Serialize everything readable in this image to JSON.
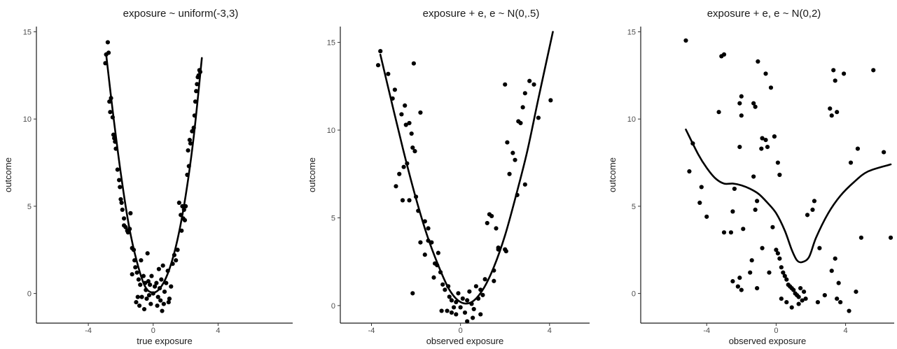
{
  "chart_data": [
    {
      "type": "scatter",
      "title": "exposure ~ uniform(-3,3)",
      "xlabel": "true exposure",
      "ylabel": "outcome",
      "xlim": [
        -7.2,
        8.6
      ],
      "ylim": [
        -1.7,
        15.3
      ],
      "xticks": [
        -4,
        0,
        4
      ],
      "yticks": [
        0,
        5,
        10,
        15
      ],
      "grid": false,
      "points": [
        [
          -2.9,
          13.7
        ],
        [
          -2.8,
          14.4
        ],
        [
          -2.75,
          13.8
        ],
        [
          -2.95,
          13.2
        ],
        [
          -2.7,
          11
        ],
        [
          -2.6,
          11.2
        ],
        [
          -2.65,
          10.4
        ],
        [
          -2.5,
          10.1
        ],
        [
          -2.45,
          9.1
        ],
        [
          -2.4,
          8.9
        ],
        [
          -2.35,
          8.7
        ],
        [
          -2.3,
          8.3
        ],
        [
          -2.2,
          7.1
        ],
        [
          -2.1,
          6.5
        ],
        [
          -2.05,
          6.1
        ],
        [
          -2.0,
          5.4
        ],
        [
          -1.95,
          5.2
        ],
        [
          -1.9,
          4.8
        ],
        [
          -1.8,
          4.3
        ],
        [
          -1.7,
          3.8
        ],
        [
          -1.6,
          3.6
        ],
        [
          -1.55,
          3.5
        ],
        [
          -1.45,
          3.7
        ],
        [
          -1.4,
          4.6
        ],
        [
          -1.3,
          2.6
        ],
        [
          -1.2,
          2.5
        ],
        [
          -1.15,
          1.9
        ],
        [
          -1.1,
          1.5
        ],
        [
          -1.3,
          1.1
        ],
        [
          -1.0,
          1.2
        ],
        [
          -0.9,
          0.8
        ],
        [
          -0.8,
          0.5
        ],
        [
          -0.75,
          1.9
        ],
        [
          -0.7,
          -0.2
        ],
        [
          -0.6,
          1.0
        ],
        [
          -0.5,
          0.6
        ],
        [
          -0.45,
          0.2
        ],
        [
          -0.4,
          -0.3
        ],
        [
          -0.35,
          2.3
        ],
        [
          -0.3,
          0.7
        ],
        [
          -0.25,
          -0.1
        ],
        [
          -0.2,
          0.5
        ],
        [
          -0.1,
          1.0
        ],
        [
          0.0,
          0.0
        ],
        [
          0.1,
          0.4
        ],
        [
          0.2,
          0.6
        ],
        [
          0.3,
          -0.2
        ],
        [
          0.35,
          1.4
        ],
        [
          0.4,
          0.3
        ],
        [
          0.5,
          0.8
        ],
        [
          0.55,
          -1.0
        ],
        [
          0.6,
          1.6
        ],
        [
          0.7,
          0.1
        ],
        [
          0.8,
          0.6
        ],
        [
          0.9,
          1.3
        ],
        [
          1.0,
          -0.3
        ],
        [
          1.1,
          0.4
        ],
        [
          1.2,
          1.7
        ],
        [
          1.3,
          2.2
        ],
        [
          1.4,
          1.9
        ],
        [
          1.5,
          2.5
        ],
        [
          1.6,
          5.2
        ],
        [
          1.7,
          4.5
        ],
        [
          1.75,
          3.6
        ],
        [
          1.8,
          5.0
        ],
        [
          1.85,
          4.3
        ],
        [
          1.9,
          4.8
        ],
        [
          1.95,
          4.2
        ],
        [
          2.0,
          5.0
        ],
        [
          2.1,
          6.8
        ],
        [
          2.15,
          8.2
        ],
        [
          2.2,
          7.3
        ],
        [
          2.25,
          8.8
        ],
        [
          2.3,
          8.6
        ],
        [
          2.4,
          9.3
        ],
        [
          2.5,
          9.5
        ],
        [
          2.55,
          10.2
        ],
        [
          2.6,
          11.0
        ],
        [
          2.65,
          11.6
        ],
        [
          2.7,
          12.0
        ],
        [
          2.75,
          12.4
        ],
        [
          2.8,
          12.5
        ],
        [
          2.9,
          12.7
        ],
        [
          2.85,
          12.8
        ],
        [
          -1.05,
          -0.5
        ],
        [
          -0.85,
          -0.7
        ],
        [
          0.25,
          -0.7
        ],
        [
          -0.15,
          -0.6
        ],
        [
          0.65,
          -0.6
        ],
        [
          -1.8,
          3.9
        ],
        [
          0.45,
          -0.4
        ],
        [
          -0.55,
          -0.9
        ],
        [
          -0.95,
          -0.2
        ],
        [
          0.95,
          -0.5
        ]
      ],
      "trend": [
        [
          -2.9,
          13.7
        ],
        [
          -2.5,
          10.5
        ],
        [
          -2,
          6.9
        ],
        [
          -1.5,
          3.9
        ],
        [
          -1,
          1.8
        ],
        [
          -0.5,
          0.4
        ],
        [
          0,
          0.05
        ],
        [
          0.5,
          0.4
        ],
        [
          1,
          1.4
        ],
        [
          1.5,
          3.1
        ],
        [
          2,
          5.6
        ],
        [
          2.5,
          9.0
        ],
        [
          3,
          13.5
        ]
      ]
    },
    {
      "type": "scatter",
      "title": "exposure + e, e ~ N(0,.5)",
      "xlabel": "observed exposure",
      "ylabel": "outcome",
      "xlim": [
        -5.4,
        5.8
      ],
      "ylim": [
        -1.0,
        15.9
      ],
      "xticks": [
        -4,
        0,
        4
      ],
      "yticks": [
        0,
        5,
        10,
        15
      ],
      "grid": false,
      "points": [
        [
          -3.6,
          14.5
        ],
        [
          -3.7,
          13.7
        ],
        [
          -3.25,
          13.2
        ],
        [
          -2.95,
          12.3
        ],
        [
          -3.05,
          11.8
        ],
        [
          -2.65,
          10.9
        ],
        [
          -2.5,
          11.4
        ],
        [
          -2.45,
          10.3
        ],
        [
          -2.3,
          10.4
        ],
        [
          -2.2,
          9.8
        ],
        [
          -2.1,
          13.8
        ],
        [
          -1.8,
          11.0
        ],
        [
          -2.15,
          9.0
        ],
        [
          -2.05,
          8.8
        ],
        [
          -2.4,
          8.1
        ],
        [
          -2.55,
          7.9
        ],
        [
          -2.75,
          7.5
        ],
        [
          -2.9,
          6.8
        ],
        [
          -2.6,
          6.0
        ],
        [
          -2.3,
          6.0
        ],
        [
          -2.0,
          6.2
        ],
        [
          -1.9,
          5.4
        ],
        [
          -1.6,
          4.8
        ],
        [
          -1.45,
          4.4
        ],
        [
          -1.3,
          3.6
        ],
        [
          -1.15,
          2.4
        ],
        [
          -1.05,
          2.3
        ],
        [
          -0.9,
          1.9
        ],
        [
          -0.8,
          1.2
        ],
        [
          -0.7,
          0.9
        ],
        [
          -0.5,
          0.5
        ],
        [
          -0.4,
          0.3
        ],
        [
          -0.3,
          -0.1
        ],
        [
          -0.2,
          0.2
        ],
        [
          -0.1,
          0.7
        ],
        [
          0.0,
          -0.1
        ],
        [
          0.1,
          0.4
        ],
        [
          0.2,
          -0.4
        ],
        [
          0.3,
          0.3
        ],
        [
          0.4,
          0.8
        ],
        [
          0.5,
          0.1
        ],
        [
          0.6,
          -0.2
        ],
        [
          0.7,
          1.1
        ],
        [
          0.8,
          0.4
        ],
        [
          0.9,
          -0.5
        ],
        [
          1.0,
          0.6
        ],
        [
          1.1,
          1.5
        ],
        [
          1.2,
          4.7
        ],
        [
          1.3,
          5.2
        ],
        [
          1.4,
          5.1
        ],
        [
          1.5,
          2.0
        ],
        [
          1.6,
          4.4
        ],
        [
          1.7,
          3.3
        ],
        [
          2.0,
          12.6
        ],
        [
          2.1,
          9.3
        ],
        [
          2.2,
          7.5
        ],
        [
          2.35,
          8.7
        ],
        [
          2.45,
          8.3
        ],
        [
          2.55,
          6.3
        ],
        [
          2.6,
          10.5
        ],
        [
          2.7,
          10.4
        ],
        [
          2.8,
          11.3
        ],
        [
          2.9,
          12.1
        ],
        [
          3.1,
          12.8
        ],
        [
          3.3,
          12.6
        ],
        [
          3.5,
          10.7
        ],
        [
          4.05,
          11.7
        ],
        [
          -2.15,
          0.7
        ],
        [
          -1.6,
          2.9
        ],
        [
          -1.2,
          1.6
        ],
        [
          -0.55,
          1.1
        ],
        [
          -1.8,
          3.6
        ],
        [
          -1.45,
          3.7
        ],
        [
          0.55,
          -0.7
        ],
        [
          -0.6,
          -0.3
        ],
        [
          0.3,
          -0.9
        ],
        [
          1.5,
          1.4
        ],
        [
          2.0,
          3.2
        ],
        [
          2.05,
          3.1
        ],
        [
          2.9,
          6.9
        ],
        [
          -0.2,
          -0.5
        ],
        [
          -1.0,
          3.0
        ],
        [
          0.9,
          0.9
        ],
        [
          1.7,
          3.2
        ],
        [
          -0.85,
          -0.3
        ],
        [
          -0.4,
          -0.4
        ]
      ],
      "trend": [
        [
          -3.6,
          14.3
        ],
        [
          -3,
          11.1
        ],
        [
          -2.5,
          8.5
        ],
        [
          -2,
          6.1
        ],
        [
          -1.5,
          4.0
        ],
        [
          -1,
          2.3
        ],
        [
          -0.5,
          0.9
        ],
        [
          0,
          0.2
        ],
        [
          0.5,
          0.2
        ],
        [
          1,
          0.9
        ],
        [
          1.5,
          2.2
        ],
        [
          2,
          4.0
        ],
        [
          2.5,
          6.3
        ],
        [
          3,
          8.8
        ],
        [
          3.5,
          11.8
        ],
        [
          4.15,
          15.6
        ]
      ]
    },
    {
      "type": "scatter",
      "title": "exposure + e, e ~ N(0,2)",
      "xlabel": "observed exposure",
      "ylabel": "outcome",
      "xlim": [
        -7.8,
        6.8
      ],
      "ylim": [
        -1.7,
        15.3
      ],
      "xticks": [
        -4,
        0,
        4
      ],
      "yticks": [
        0,
        5,
        10,
        15
      ],
      "grid": false,
      "points": [
        [
          -5.2,
          14.5
        ],
        [
          -3.0,
          13.7
        ],
        [
          -3.15,
          13.6
        ],
        [
          -1.05,
          13.3
        ],
        [
          -0.6,
          12.6
        ],
        [
          -0.3,
          11.8
        ],
        [
          -2.0,
          11.3
        ],
        [
          -2.1,
          10.9
        ],
        [
          -3.3,
          10.4
        ],
        [
          -2.0,
          10.2
        ],
        [
          -1.2,
          10.7
        ],
        [
          -1.3,
          10.9
        ],
        [
          -0.8,
          8.9
        ],
        [
          -0.6,
          8.8
        ],
        [
          -0.5,
          8.4
        ],
        [
          -0.85,
          8.3
        ],
        [
          -0.1,
          9.0
        ],
        [
          -2.1,
          8.4
        ],
        [
          -4.8,
          8.6
        ],
        [
          0.1,
          7.5
        ],
        [
          0.2,
          6.8
        ],
        [
          -1.3,
          6.7
        ],
        [
          -2.4,
          6.0
        ],
        [
          -1.1,
          5.3
        ],
        [
          -2.5,
          4.7
        ],
        [
          -1.2,
          4.8
        ],
        [
          -4.4,
          5.2
        ],
        [
          -4.3,
          6.1
        ],
        [
          -4.0,
          4.4
        ],
        [
          -5.0,
          7.0
        ],
        [
          -3.0,
          3.5
        ],
        [
          -2.6,
          3.5
        ],
        [
          -1.9,
          3.7
        ],
        [
          -1.4,
          1.9
        ],
        [
          -1.5,
          1.2
        ],
        [
          -2.1,
          0.9
        ],
        [
          -2.5,
          0.7
        ],
        [
          -2.2,
          0.4
        ],
        [
          -2.0,
          0.2
        ],
        [
          -1.1,
          0.3
        ],
        [
          -0.4,
          1.2
        ],
        [
          -0.2,
          3.8
        ],
        [
          0.0,
          2.5
        ],
        [
          0.1,
          2.3
        ],
        [
          0.2,
          2.0
        ],
        [
          0.3,
          1.5
        ],
        [
          0.4,
          1.2
        ],
        [
          0.5,
          1.0
        ],
        [
          0.6,
          0.8
        ],
        [
          0.7,
          0.5
        ],
        [
          0.8,
          0.4
        ],
        [
          0.9,
          0.3
        ],
        [
          1.0,
          0.2
        ],
        [
          1.1,
          0.0
        ],
        [
          1.2,
          -0.1
        ],
        [
          1.3,
          -0.2
        ],
        [
          1.4,
          0.3
        ],
        [
          1.5,
          -0.4
        ],
        [
          1.6,
          0.1
        ],
        [
          1.7,
          -0.3
        ],
        [
          0.9,
          -0.8
        ],
        [
          1.3,
          -0.6
        ],
        [
          0.3,
          -0.3
        ],
        [
          0.6,
          -0.5
        ],
        [
          1.8,
          4.5
        ],
        [
          2.1,
          4.8
        ],
        [
          2.2,
          5.3
        ],
        [
          2.5,
          2.6
        ],
        [
          3.1,
          10.6
        ],
        [
          3.2,
          10.2
        ],
        [
          3.3,
          12.8
        ],
        [
          3.4,
          12.2
        ],
        [
          3.5,
          10.4
        ],
        [
          3.9,
          12.6
        ],
        [
          4.3,
          7.5
        ],
        [
          4.7,
          8.3
        ],
        [
          4.9,
          3.2
        ],
        [
          5.6,
          12.8
        ],
        [
          6.2,
          8.1
        ],
        [
          6.6,
          3.2
        ],
        [
          3.2,
          1.3
        ],
        [
          3.4,
          2.0
        ],
        [
          3.5,
          -0.3
        ],
        [
          3.6,
          0.6
        ],
        [
          3.7,
          -0.5
        ],
        [
          4.2,
          -1.0
        ],
        [
          4.6,
          0.1
        ],
        [
          2.4,
          -0.5
        ],
        [
          2.8,
          -0.1
        ],
        [
          -0.8,
          2.6
        ]
      ],
      "trend": [
        [
          -5.2,
          9.4
        ],
        [
          -4.5,
          8.0
        ],
        [
          -4,
          7.2
        ],
        [
          -3.5,
          6.6
        ],
        [
          -3,
          6.3
        ],
        [
          -2.5,
          6.3
        ],
        [
          -2,
          6.2
        ],
        [
          -1.5,
          6.0
        ],
        [
          -1,
          5.7
        ],
        [
          -0.5,
          5.2
        ],
        [
          0,
          4.6
        ],
        [
          0.5,
          3.6
        ],
        [
          0.9,
          2.5
        ],
        [
          1.2,
          1.9
        ],
        [
          1.5,
          1.8
        ],
        [
          1.9,
          2.1
        ],
        [
          2.3,
          3.2
        ],
        [
          3,
          4.6
        ],
        [
          3.7,
          5.6
        ],
        [
          4.5,
          6.4
        ],
        [
          5.3,
          7.0
        ],
        [
          6.6,
          7.4
        ]
      ]
    }
  ]
}
